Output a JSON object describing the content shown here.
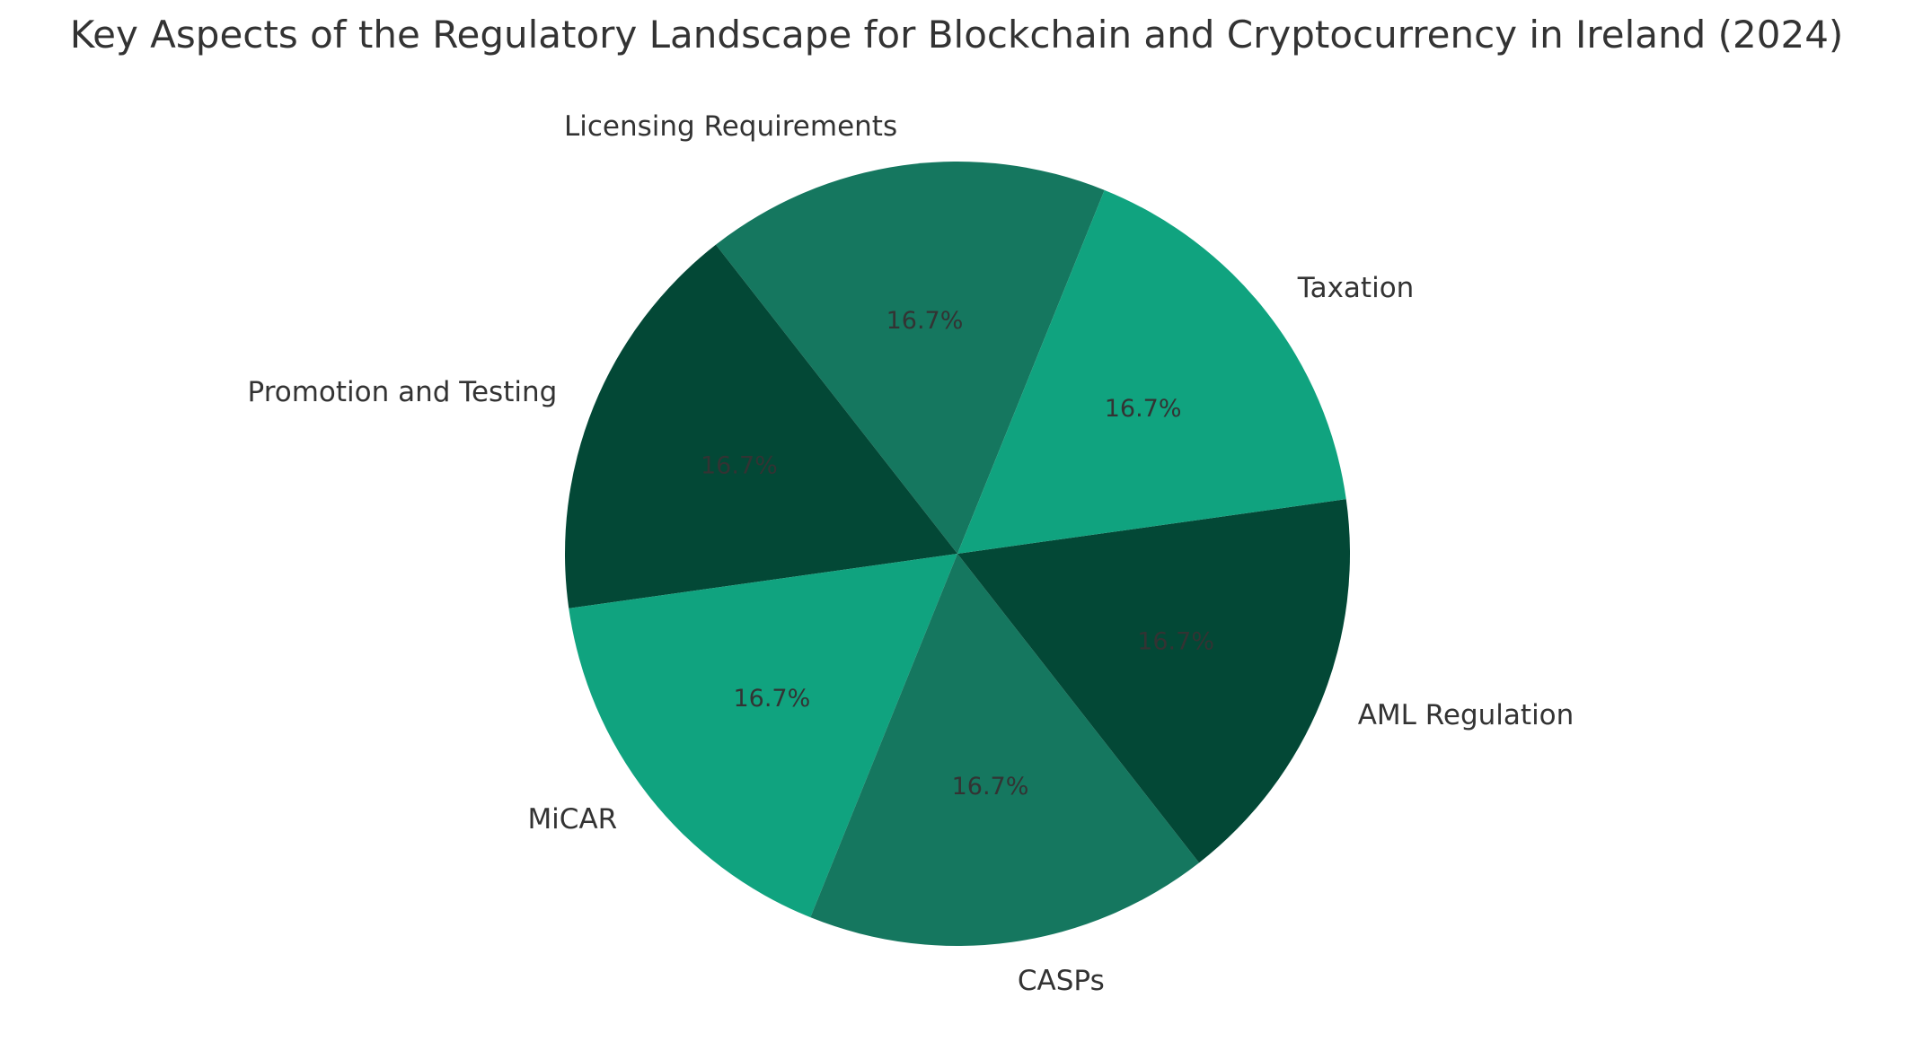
{
  "chart_data": {
    "type": "pie",
    "title": "Key Aspects of the Regulatory Landscape for Blockchain and Cryptocurrency in Ireland (2024)",
    "slices": [
      {
        "label": "Licensing Requirements",
        "value": 16.7,
        "pct_label": "16.7%",
        "color": "#15775f"
      },
      {
        "label": "Promotion and Testing",
        "value": 16.7,
        "pct_label": "16.7%",
        "color": "#034836"
      },
      {
        "label": "MiCAR",
        "value": 16.7,
        "pct_label": "16.7%",
        "color": "#10a37f"
      },
      {
        "label": "CASPs",
        "value": 16.7,
        "pct_label": "16.7%",
        "color": "#15775f"
      },
      {
        "label": "AML Regulation",
        "value": 16.7,
        "pct_label": "16.7%",
        "color": "#034836"
      },
      {
        "label": "Taxation",
        "value": 16.7,
        "pct_label": "16.7%",
        "color": "#10a37f"
      }
    ]
  }
}
